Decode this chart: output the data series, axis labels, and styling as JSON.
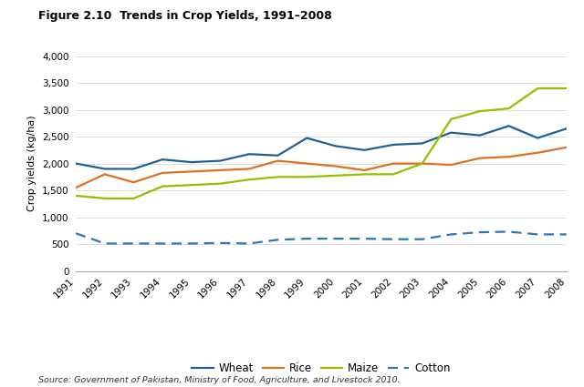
{
  "title": "Figure 2.10  Trends in Crop Yields, 1991–2008",
  "ylabel": "Crop yields (kg/ha)",
  "source": "Source: Government of Pakistan, Ministry of Food, Agriculture, and Livestock 2010.",
  "years": [
    1991,
    1992,
    1993,
    1994,
    1995,
    1996,
    1997,
    1998,
    1999,
    2000,
    2001,
    2002,
    2003,
    2004,
    2005,
    2006,
    2007,
    2008
  ],
  "wheat": [
    2000,
    1900,
    1900,
    2075,
    2025,
    2050,
    2175,
    2150,
    2475,
    2325,
    2250,
    2350,
    2375,
    2575,
    2525,
    2700,
    2475,
    2650
  ],
  "rice": [
    1550,
    1800,
    1650,
    1825,
    1850,
    1875,
    1900,
    2050,
    2000,
    1950,
    1875,
    2000,
    2000,
    1975,
    2100,
    2125,
    2200,
    2300
  ],
  "maize": [
    1400,
    1350,
    1350,
    1575,
    1600,
    1625,
    1700,
    1750,
    1750,
    1775,
    1800,
    1800,
    2000,
    2825,
    2975,
    3025,
    3400,
    3400
  ],
  "cotton": [
    700,
    510,
    510,
    510,
    510,
    520,
    510,
    580,
    600,
    600,
    600,
    590,
    590,
    680,
    720,
    730,
    680,
    680
  ],
  "wheat_color": "#1f6096",
  "rice_color": "#e07020",
  "maize_color": "#92c000",
  "cotton_color": "#2e75b6",
  "ylim": [
    0,
    4000
  ],
  "yticks": [
    0,
    500,
    1000,
    1500,
    2000,
    2500,
    3000,
    3500,
    4000
  ],
  "background_color": "#ffffff"
}
